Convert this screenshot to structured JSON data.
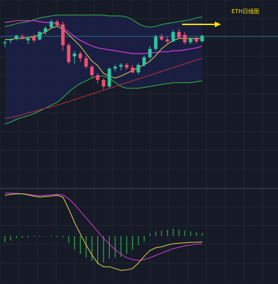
{
  "chart_data": {
    "type": "candlestick",
    "annotation": "ETH日线图",
    "colors": {
      "background": "#151a26",
      "band_fill": "#1b2148",
      "up": "#2fc3a0",
      "down": "#f0506e",
      "ma_short": "#e6d84a",
      "ma_mid": "#d93bd6",
      "ma_long": "#c0303a",
      "boll_band": "#38b84a",
      "macd_dif": "#e6d84a",
      "macd_dea": "#d93bd6",
      "macd_hist": "#2fae4a",
      "arrow": "#ffe100",
      "hline": "#2e6a8e"
    },
    "price_panel": {
      "ylim": [
        0,
        100
      ],
      "reference_level": 80.7,
      "candles": [
        {
          "o": 77.0,
          "h": 78.5,
          "l": 75.0,
          "c": 77.5
        },
        {
          "o": 78.5,
          "h": 79.5,
          "l": 77.0,
          "c": 79.0
        },
        {
          "o": 79.5,
          "h": 81.5,
          "l": 78.5,
          "c": 81.0
        },
        {
          "o": 80.5,
          "h": 82.0,
          "l": 79.0,
          "c": 80.0
        },
        {
          "o": 78.5,
          "h": 80.0,
          "l": 76.5,
          "c": 79.5
        },
        {
          "o": 80.5,
          "h": 82.0,
          "l": 77.5,
          "c": 78.5
        },
        {
          "o": 79.0,
          "h": 83.5,
          "l": 78.5,
          "c": 83.0
        },
        {
          "o": 83.0,
          "h": 86.0,
          "l": 81.5,
          "c": 85.0
        },
        {
          "o": 85.5,
          "h": 89.5,
          "l": 85.0,
          "c": 88.5
        },
        {
          "o": 88.5,
          "h": 89.5,
          "l": 86.0,
          "c": 86.5
        },
        {
          "o": 87.0,
          "h": 88.5,
          "l": 73.0,
          "c": 76.0
        },
        {
          "o": 76.0,
          "h": 77.0,
          "l": 66.0,
          "c": 67.0
        },
        {
          "o": 70.0,
          "h": 73.0,
          "l": 66.0,
          "c": 71.5
        },
        {
          "o": 71.5,
          "h": 72.5,
          "l": 67.0,
          "c": 69.0
        },
        {
          "o": 69.0,
          "h": 70.5,
          "l": 63.5,
          "c": 64.5
        },
        {
          "o": 64.5,
          "h": 65.5,
          "l": 58.5,
          "c": 60.0
        },
        {
          "o": 60.0,
          "h": 61.0,
          "l": 55.5,
          "c": 57.5
        },
        {
          "o": 57.5,
          "h": 58.5,
          "l": 52.5,
          "c": 54.0
        },
        {
          "o": 54.0,
          "h": 64.0,
          "l": 53.0,
          "c": 63.5
        },
        {
          "o": 63.5,
          "h": 65.5,
          "l": 62.0,
          "c": 64.5
        },
        {
          "o": 64.5,
          "h": 66.5,
          "l": 62.5,
          "c": 65.5
        },
        {
          "o": 65.5,
          "h": 66.5,
          "l": 63.0,
          "c": 64.0
        },
        {
          "o": 64.0,
          "h": 65.5,
          "l": 61.0,
          "c": 61.5
        },
        {
          "o": 61.5,
          "h": 66.5,
          "l": 60.5,
          "c": 65.5
        },
        {
          "o": 65.5,
          "h": 70.5,
          "l": 64.5,
          "c": 69.5
        },
        {
          "o": 69.5,
          "h": 75.5,
          "l": 68.5,
          "c": 74.0
        },
        {
          "o": 74.0,
          "h": 81.5,
          "l": 73.0,
          "c": 80.5
        },
        {
          "o": 80.5,
          "h": 82.0,
          "l": 78.5,
          "c": 79.0
        },
        {
          "o": 79.0,
          "h": 80.5,
          "l": 77.0,
          "c": 78.0
        },
        {
          "o": 78.0,
          "h": 84.0,
          "l": 77.5,
          "c": 83.0
        },
        {
          "o": 83.0,
          "h": 84.5,
          "l": 79.5,
          "c": 80.0
        },
        {
          "o": 81.5,
          "h": 83.0,
          "l": 76.5,
          "c": 77.5
        },
        {
          "o": 77.5,
          "h": 80.0,
          "l": 76.5,
          "c": 79.5
        },
        {
          "o": 79.5,
          "h": 80.5,
          "l": 77.0,
          "c": 78.0
        },
        {
          "o": 78.0,
          "h": 81.5,
          "l": 77.5,
          "c": 81.0
        }
      ],
      "ma_short": [
        79.0,
        79.0,
        79.5,
        79.5,
        80.0,
        80.5,
        81.5,
        83.0,
        85.0,
        86.0,
        84.5,
        81.5,
        78.5,
        75.5,
        71.5,
        67.5,
        65.0,
        61.0,
        59.5,
        58.5,
        59.5,
        61.0,
        62.5,
        64.0,
        65.5,
        67.5,
        70.5,
        74.0,
        76.5,
        78.5,
        79.5,
        79.5,
        79.5,
        79.5,
        79.5
      ],
      "ma_mid": [
        88.0,
        88.5,
        89.0,
        89.0,
        89.0,
        89.0,
        88.5,
        88.0,
        88.0,
        87.5,
        85.5,
        83.0,
        80.5,
        78.5,
        77.0,
        75.5,
        74.5,
        74.0,
        73.5,
        73.0,
        72.5,
        72.0,
        71.5,
        71.5,
        71.5,
        72.0,
        72.0,
        72.5,
        72.5,
        73.0,
        73.0,
        73.5,
        74.0,
        74.5,
        75.5
      ],
      "ma_long": [
        37.0,
        37.5,
        38.0,
        39.0,
        40.0,
        40.5,
        41.5,
        42.5,
        43.0,
        44.0,
        45.0,
        46.0,
        47.0,
        48.0,
        49.0,
        50.0,
        51.0,
        52.0,
        53.0,
        54.0,
        55.0,
        56.0,
        57.0,
        58.0,
        59.0,
        60.0,
        61.0,
        62.0,
        63.0,
        64.0,
        65.0,
        66.0,
        67.0,
        68.0,
        69.0
      ],
      "boll_upper": [
        86.0,
        86.5,
        87.5,
        88.0,
        88.5,
        89.5,
        90.5,
        91.0,
        91.5,
        92.0,
        92.0,
        92.0,
        92.0,
        92.0,
        92.0,
        92.0,
        92.0,
        92.0,
        91.5,
        91.5,
        91.5,
        91.0,
        89.5,
        87.5,
        86.0,
        85.5,
        86.0,
        87.0,
        87.5,
        88.0,
        88.5,
        89.0,
        89.5,
        90.5,
        91.0
      ],
      "boll_lower": [
        34.0,
        35.0,
        36.5,
        37.5,
        38.5,
        39.5,
        41.0,
        42.5,
        44.0,
        45.5,
        48.0,
        51.0,
        53.5,
        55.5,
        57.0,
        58.5,
        59.5,
        59.5,
        58.5,
        56.0,
        54.0,
        53.0,
        53.0,
        53.0,
        53.5,
        54.0,
        54.5,
        55.0,
        55.5,
        56.0,
        56.0,
        56.0,
        56.0,
        56.5,
        57.0
      ]
    },
    "macd_panel": {
      "ylim": [
        -1.0,
        1.0
      ],
      "dif": [
        0.9,
        0.92,
        0.93,
        0.93,
        0.91,
        0.88,
        0.86,
        0.87,
        0.88,
        0.9,
        0.86,
        0.6,
        0.3,
        0.05,
        -0.2,
        -0.42,
        -0.6,
        -0.68,
        -0.68,
        -0.72,
        -0.76,
        -0.75,
        -0.72,
        -0.6,
        -0.45,
        -0.32,
        -0.26,
        -0.24,
        -0.2,
        -0.17,
        -0.16,
        -0.15,
        -0.14,
        -0.14,
        -0.13
      ],
      "dea": [
        0.95,
        0.95,
        0.94,
        0.93,
        0.92,
        0.9,
        0.89,
        0.9,
        0.91,
        0.92,
        0.91,
        0.82,
        0.7,
        0.55,
        0.4,
        0.25,
        0.1,
        -0.05,
        -0.18,
        -0.3,
        -0.4,
        -0.48,
        -0.52,
        -0.54,
        -0.52,
        -0.48,
        -0.43,
        -0.38,
        -0.33,
        -0.28,
        -0.25,
        -0.22,
        -0.2,
        -0.18,
        -0.17
      ],
      "hist": [
        -0.14,
        -0.1,
        -0.05,
        -0.04,
        -0.03,
        -0.02,
        -0.02,
        -0.01,
        -0.02,
        -0.02,
        -0.03,
        -0.15,
        -0.3,
        -0.4,
        -0.48,
        -0.55,
        -0.62,
        -0.58,
        -0.5,
        -0.48,
        -0.46,
        -0.4,
        -0.3,
        -0.2,
        -0.12,
        0.06,
        0.1,
        0.12,
        0.14,
        0.16,
        0.14,
        0.12,
        0.1,
        0.08,
        0.06
      ]
    }
  }
}
